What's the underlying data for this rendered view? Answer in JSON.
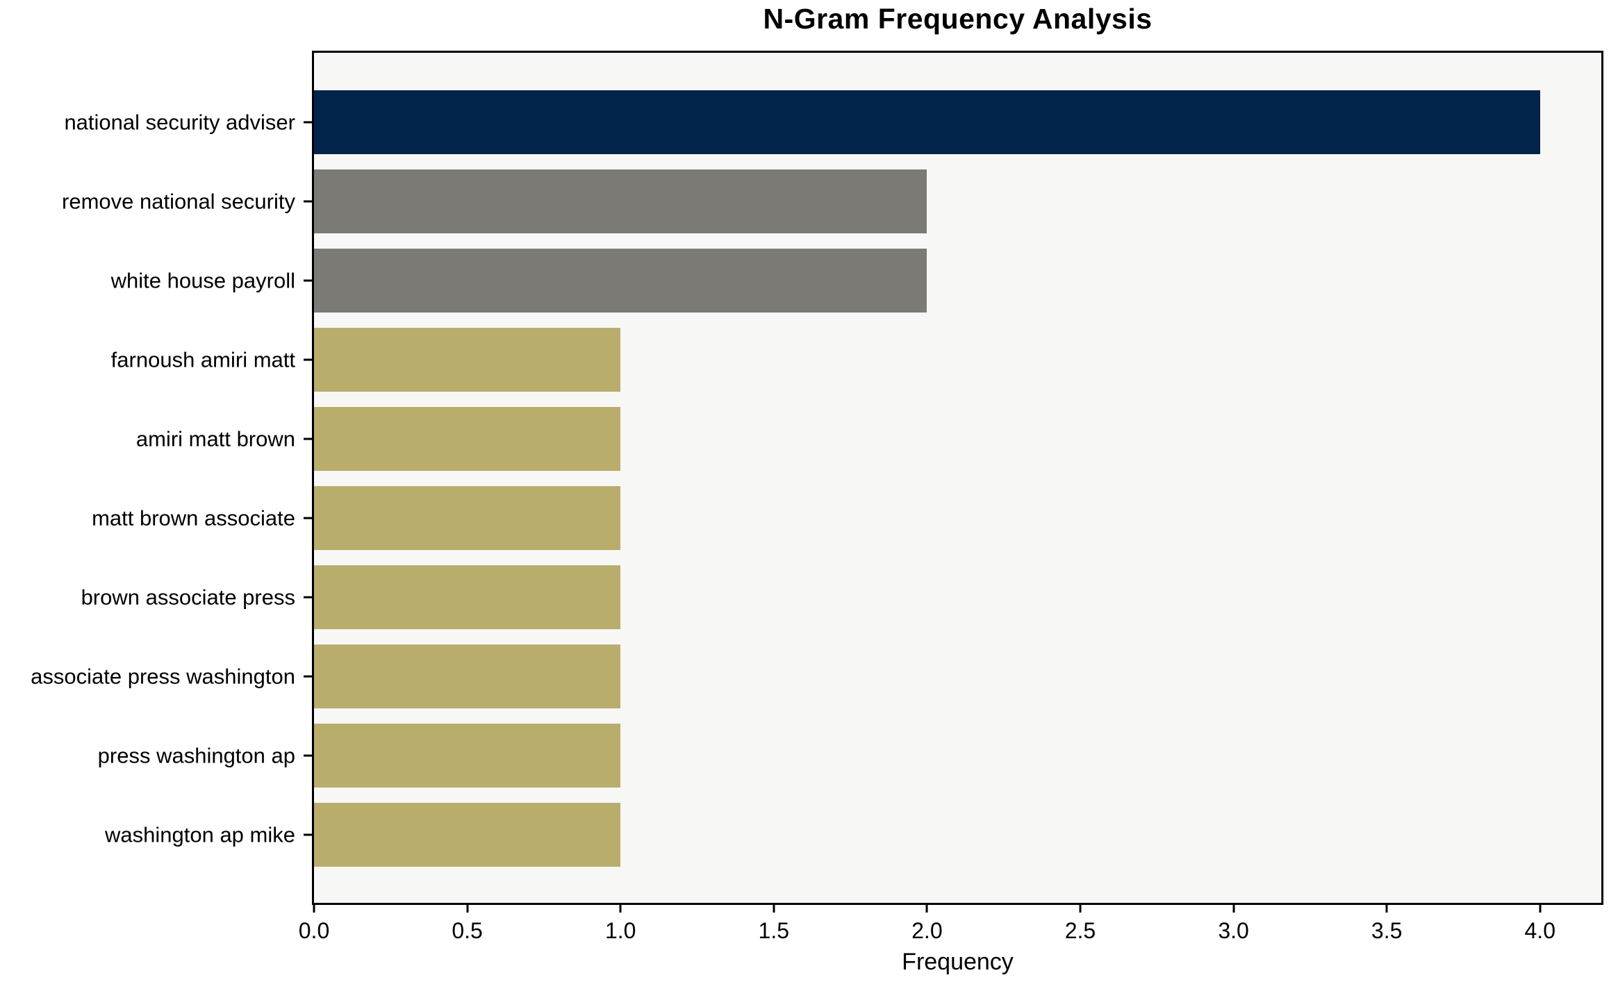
{
  "chart_data": {
    "type": "bar",
    "orientation": "horizontal",
    "title": "N-Gram Frequency Analysis",
    "xlabel": "Frequency",
    "ylabel": "",
    "categories": [
      "national security adviser",
      "remove national security",
      "white house payroll",
      "farnoush amiri matt",
      "amiri matt brown",
      "matt brown associate",
      "brown associate press",
      "associate press washington",
      "press washington ap",
      "washington ap mike"
    ],
    "values": [
      4,
      2,
      2,
      1,
      1,
      1,
      1,
      1,
      1,
      1
    ],
    "bar_colors": [
      "#02234a",
      "#7b7a74",
      "#7b7a74",
      "#b9ad6c",
      "#b9ad6c",
      "#b9ad6c",
      "#b9ad6c",
      "#b9ad6c",
      "#b9ad6c",
      "#b9ad6c"
    ],
    "xlim": [
      0,
      4.2
    ],
    "xticks": [
      0.0,
      0.5,
      1.0,
      1.5,
      2.0,
      2.5,
      3.0,
      3.5,
      4.0
    ],
    "xtick_labels": [
      "0.0",
      "0.5",
      "1.0",
      "1.5",
      "2.0",
      "2.5",
      "3.0",
      "3.5",
      "4.0"
    ],
    "grid": false,
    "legend": "none",
    "colors": {
      "figure_background": "#ffffff",
      "plot_background": "#f7f7f6",
      "spine": "#000000",
      "text": "#000000"
    }
  }
}
